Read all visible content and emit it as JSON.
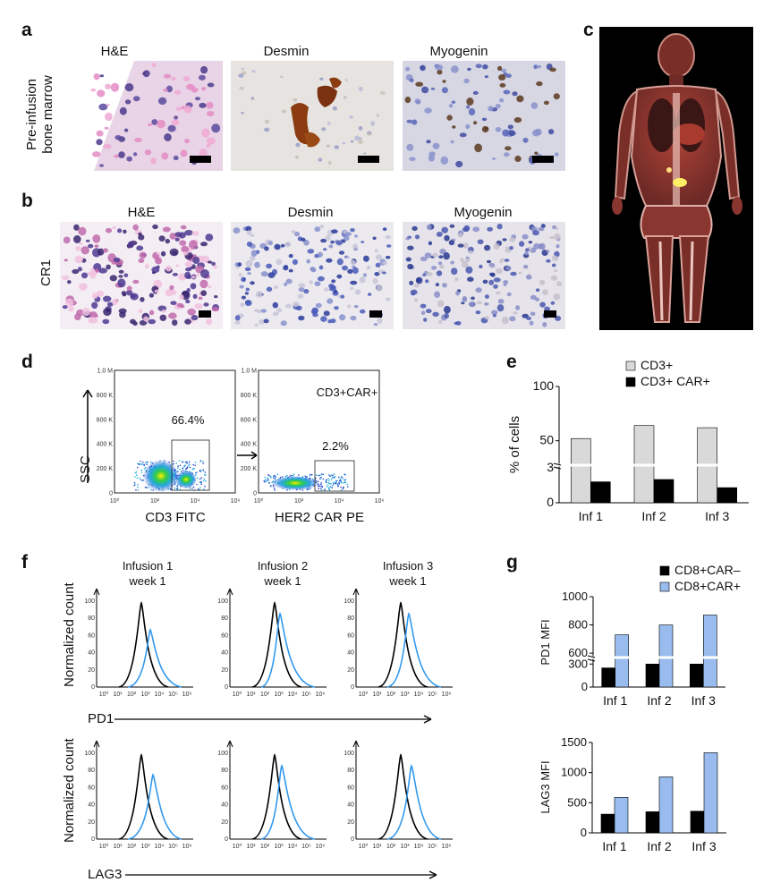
{
  "panels": {
    "a": {
      "label": "a",
      "row_label_1": "Pre-infusion",
      "row_label_2": "bone marrow",
      "titles": [
        "H&E",
        "Desmin",
        "Myogenin"
      ]
    },
    "b": {
      "label": "b",
      "row_label": "CR1",
      "titles": [
        "H&E",
        "Desmin",
        "Myogenin"
      ]
    },
    "c": {
      "label": "c"
    },
    "d": {
      "label": "d",
      "y_ticks": [
        "1.0 M",
        "800 K",
        "600 K",
        "400 K",
        "200 K",
        "0"
      ],
      "x_ticks": [
        "10⁰",
        "10²",
        "10⁴",
        "10⁶"
      ],
      "left_gate_pct": "66.4%",
      "right_gate_pct": "2.2%",
      "right_title": "CD3+CAR+",
      "ylabel": "SSC",
      "left_xlabel": "CD3 FITC",
      "right_xlabel": "HER2 CAR PE"
    },
    "f": {
      "label": "f",
      "col_titles": [
        {
          "line1": "Infusion 1",
          "line2": "week 1"
        },
        {
          "line1": "Infusion 2",
          "line2": "week 1"
        },
        {
          "line1": "Infusion 3",
          "line2": "week 1"
        }
      ],
      "ylabel": "Normalized count",
      "y_ticks": [
        "100",
        "80",
        "60",
        "40",
        "20",
        "0"
      ],
      "x_ticks": [
        "10⁰",
        "10¹",
        "10²",
        "10³",
        "10⁴",
        "10⁵",
        "10⁶"
      ],
      "top_marker": "PD1",
      "bottom_marker": "LAG3"
    },
    "g": {
      "label": "g"
    },
    "e": {
      "label": "e"
    }
  },
  "chart_data": [
    {
      "id": "e",
      "type": "bar",
      "categories": [
        "Inf 1",
        "Inf 2",
        "Inf 3"
      ],
      "series": [
        {
          "name": "CD3+",
          "values": [
            52,
            64,
            62
          ],
          "color": "#d9d9d9"
        },
        {
          "name": "CD3+ CAR+",
          "values": [
            1.8,
            2.0,
            1.3
          ],
          "color": "#000000"
        }
      ],
      "ylabel": "% of cells",
      "y_ticks": [
        "0",
        "3",
        "50",
        "100"
      ],
      "axis_break": [
        3,
        25
      ],
      "legend": "top-right"
    },
    {
      "id": "g-pd1",
      "type": "bar",
      "categories": [
        "Inf 1",
        "Inf 2",
        "Inf 3"
      ],
      "series": [
        {
          "name": "CD8+CAR–",
          "values": [
            250,
            300,
            300
          ],
          "color": "#000000"
        },
        {
          "name": "CD8+CAR+",
          "values": [
            730,
            800,
            870
          ],
          "color": "#99bbee"
        }
      ],
      "ylabel": "PD1 MFI",
      "y_ticks": [
        "0",
        "300",
        "600",
        "800",
        "1000"
      ],
      "axis_break": [
        350,
        550
      ],
      "legend": "top-right"
    },
    {
      "id": "g-lag3",
      "type": "bar",
      "categories": [
        "Inf 1",
        "Inf 2",
        "Inf 3"
      ],
      "series": [
        {
          "name": "CD8+CAR–",
          "values": [
            310,
            350,
            360
          ],
          "color": "#000000"
        },
        {
          "name": "CD8+CAR+",
          "values": [
            590,
            930,
            1330
          ],
          "color": "#99bbee"
        }
      ],
      "ylabel": "LAG3 MFI",
      "y_ticks": [
        "0",
        "500",
        "1000",
        "1500"
      ],
      "ylim": [
        0,
        1500
      ]
    }
  ]
}
